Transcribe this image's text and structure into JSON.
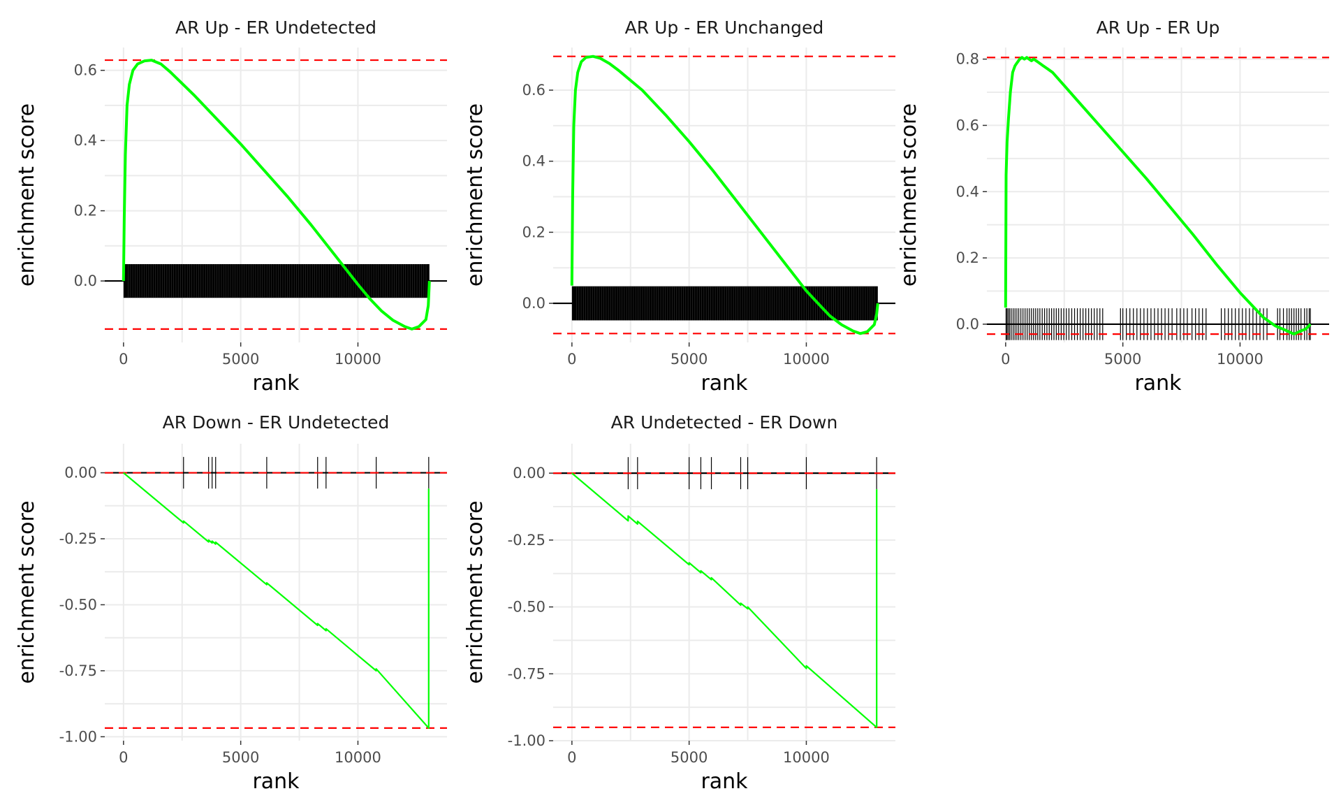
{
  "colors": {
    "background": "#ffffff",
    "grid": "#ebebeb",
    "curve": "#00ff00",
    "threshold": "#ff0000",
    "hits": "#000000",
    "zero_line": "#000000",
    "tick_text": "#4d4d4d"
  },
  "chart_data": [
    {
      "type": "line",
      "title": "AR Up - ER Undetected",
      "xlabel": "rank",
      "ylabel": "enrichment score",
      "xlim": [
        -800,
        13800
      ],
      "ylim": [
        -0.175,
        0.665
      ],
      "x_ticks": [
        0,
        5000,
        10000
      ],
      "x_tick_labels": [
        "0",
        "5000",
        "10000"
      ],
      "y_ticks": [
        0.0,
        0.2,
        0.4,
        0.6
      ],
      "y_tick_labels": [
        "0.0",
        "0.2",
        "0.4",
        "0.6"
      ],
      "grid": true,
      "hlines": [
        0.629,
        -0.137
      ],
      "hit_band": [
        -0.048,
        0.048
      ],
      "hits_dense": true,
      "hits": [],
      "series": [
        {
          "x": [
            0,
            30,
            80,
            150,
            250,
            400,
            600,
            900,
            1200,
            1600,
            2000,
            3000,
            4000,
            5000,
            6000,
            7000,
            8000,
            9000,
            10000,
            10500,
            11000,
            11500,
            12000,
            12300,
            12600,
            12900,
            13000,
            13050
          ],
          "y": [
            0.0,
            0.18,
            0.36,
            0.5,
            0.56,
            0.6,
            0.618,
            0.627,
            0.629,
            0.618,
            0.595,
            0.53,
            0.46,
            0.39,
            0.315,
            0.24,
            0.16,
            0.075,
            -0.01,
            -0.05,
            -0.085,
            -0.112,
            -0.13,
            -0.137,
            -0.13,
            -0.11,
            -0.07,
            0.0
          ]
        }
      ]
    },
    {
      "type": "line",
      "title": "AR Up - ER Unchanged",
      "xlabel": "rank",
      "ylabel": "enrichment score",
      "xlim": [
        -800,
        13800
      ],
      "ylim": [
        -0.11,
        0.72
      ],
      "x_ticks": [
        0,
        5000,
        10000
      ],
      "x_tick_labels": [
        "0",
        "5000",
        "10000"
      ],
      "y_ticks": [
        0.0,
        0.2,
        0.4,
        0.6
      ],
      "y_tick_labels": [
        "0.0",
        "0.2",
        "0.4",
        "0.6"
      ],
      "grid": true,
      "hlines": [
        0.695,
        -0.085
      ],
      "hit_band": [
        -0.048,
        0.048
      ],
      "hits_dense": true,
      "hits": [],
      "series": [
        {
          "x": [
            0,
            30,
            80,
            150,
            250,
            400,
            600,
            900,
            1200,
            1600,
            2000,
            3000,
            4000,
            5000,
            6000,
            7000,
            8000,
            9000,
            10000,
            10500,
            11000,
            11500,
            12000,
            12300,
            12600,
            12900,
            13000,
            13050
          ],
          "y": [
            0.05,
            0.3,
            0.5,
            0.6,
            0.65,
            0.68,
            0.692,
            0.695,
            0.69,
            0.675,
            0.655,
            0.6,
            0.53,
            0.455,
            0.375,
            0.29,
            0.205,
            0.12,
            0.035,
            0.0,
            -0.035,
            -0.06,
            -0.078,
            -0.085,
            -0.08,
            -0.06,
            -0.03,
            0.0
          ]
        }
      ]
    },
    {
      "type": "line",
      "title": "AR Up - ER Up",
      "xlabel": "rank",
      "ylabel": "enrichment score",
      "xlim": [
        -800,
        13800
      ],
      "ylim": [
        -0.055,
        0.835
      ],
      "x_ticks": [
        0,
        5000,
        10000
      ],
      "x_tick_labels": [
        "0",
        "5000",
        "10000"
      ],
      "y_ticks": [
        0.0,
        0.2,
        0.4,
        0.6,
        0.8
      ],
      "y_tick_labels": [
        "0.0",
        "0.2",
        "0.4",
        "0.6",
        "0.8"
      ],
      "grid": true,
      "hlines": [
        0.805,
        -0.03
      ],
      "hit_band": [
        -0.048,
        0.048
      ],
      "hits_dense": false,
      "hits": [
        20,
        60,
        110,
        170,
        240,
        320,
        400,
        480,
        560,
        650,
        740,
        830,
        920,
        1010,
        1100,
        1190,
        1280,
        1370,
        1460,
        1560,
        1660,
        1760,
        1860,
        1960,
        2060,
        2160,
        2260,
        2370,
        2480,
        2590,
        2700,
        2820,
        2940,
        3060,
        3180,
        3300,
        3420,
        3540,
        3660,
        3780,
        3900,
        4020,
        4140,
        4900,
        5000,
        5150,
        5300,
        5450,
        5600,
        5750,
        5900,
        6050,
        6200,
        6350,
        6500,
        6650,
        6800,
        6950,
        7100,
        7300,
        7450,
        7600,
        7750,
        7950,
        8100,
        8250,
        8400,
        8550,
        9200,
        9350,
        9500,
        9650,
        9800,
        9950,
        10100,
        10250,
        10400,
        10550,
        10700,
        10850,
        11000,
        11150,
        11600,
        11700,
        11850,
        12000,
        12100,
        12200,
        12300,
        12400,
        12500,
        12600,
        12750,
        12850,
        12950,
        13000
      ],
      "series": [
        {
          "x": [
            0,
            20,
            60,
            120,
            200,
            300,
            400,
            500,
            600,
            700,
            800,
            900,
            1000,
            1100,
            1200,
            1400,
            1600,
            1800,
            2000,
            2500,
            3000,
            4000,
            5000,
            6000,
            7000,
            8000,
            9000,
            10000,
            11000,
            11500,
            12000,
            12300,
            12600,
            12800,
            13000
          ],
          "y": [
            0.05,
            0.45,
            0.55,
            0.62,
            0.7,
            0.76,
            0.78,
            0.79,
            0.8,
            0.805,
            0.8,
            0.805,
            0.8,
            0.795,
            0.8,
            0.79,
            0.78,
            0.77,
            0.76,
            0.72,
            0.68,
            0.6,
            0.52,
            0.44,
            0.355,
            0.27,
            0.18,
            0.095,
            0.02,
            -0.005,
            -0.02,
            -0.03,
            -0.02,
            -0.015,
            0.0
          ]
        }
      ]
    },
    {
      "type": "line",
      "title": "AR Down - ER Undetected",
      "xlabel": "rank",
      "ylabel": "enrichment score",
      "xlim": [
        -800,
        13800
      ],
      "ylim": [
        -1.015,
        0.11
      ],
      "x_ticks": [
        0,
        5000,
        10000
      ],
      "x_tick_labels": [
        "0",
        "5000",
        "10000"
      ],
      "y_ticks": [
        0.0,
        -0.25,
        -0.5,
        -0.75,
        -1.0
      ],
      "y_tick_labels": [
        "0.00",
        "-0.25",
        "-0.50",
        "-0.75",
        "-1.00"
      ],
      "grid": true,
      "hlines": [
        0.0,
        -0.967
      ],
      "hit_band": [
        -0.06,
        0.06
      ],
      "hits_dense": false,
      "hits": [
        2560,
        3630,
        3780,
        3930,
        6110,
        8280,
        8640,
        10780,
        13020
      ],
      "series": [
        {
          "x": [
            0,
            2560,
            2560,
            3630,
            3630,
            3780,
            3780,
            3930,
            3930,
            6110,
            6110,
            8280,
            8280,
            8640,
            8640,
            10780,
            10780,
            13020,
            13020
          ],
          "y": [
            0.0,
            -0.19,
            -0.183,
            -0.262,
            -0.255,
            -0.266,
            -0.259,
            -0.27,
            -0.263,
            -0.424,
            -0.417,
            -0.578,
            -0.571,
            -0.598,
            -0.591,
            -0.75,
            -0.743,
            -0.967,
            -0.06
          ]
        }
      ]
    },
    {
      "type": "line",
      "title": "AR Undetected - ER Down",
      "xlabel": "rank",
      "ylabel": "enrichment score",
      "xlim": [
        -800,
        13800
      ],
      "ylim": [
        -1.0,
        0.11
      ],
      "x_ticks": [
        0,
        5000,
        10000
      ],
      "x_tick_labels": [
        "0",
        "5000",
        "10000"
      ],
      "y_ticks": [
        0.0,
        -0.25,
        -0.5,
        -0.75,
        -1.0
      ],
      "y_tick_labels": [
        "0.00",
        "-0.25",
        "-0.50",
        "-0.75",
        "-1.00"
      ],
      "grid": true,
      "hlines": [
        0.0,
        -0.95
      ],
      "hit_band": [
        -0.06,
        0.06
      ],
      "hits_dense": false,
      "hits": [
        2400,
        2800,
        5000,
        5500,
        5950,
        7200,
        7500,
        10000,
        13000
      ],
      "series": [
        {
          "x": [
            0,
            2400,
            2400,
            2800,
            2800,
            5000,
            5000,
            5500,
            5500,
            5950,
            5950,
            7200,
            7200,
            7500,
            7500,
            10000,
            10000,
            13000,
            13000
          ],
          "y": [
            0.0,
            -0.178,
            -0.16,
            -0.19,
            -0.18,
            -0.342,
            -0.335,
            -0.372,
            -0.365,
            -0.398,
            -0.391,
            -0.493,
            -0.486,
            -0.507,
            -0.5,
            -0.73,
            -0.72,
            -0.95,
            -0.06
          ]
        }
      ]
    }
  ]
}
